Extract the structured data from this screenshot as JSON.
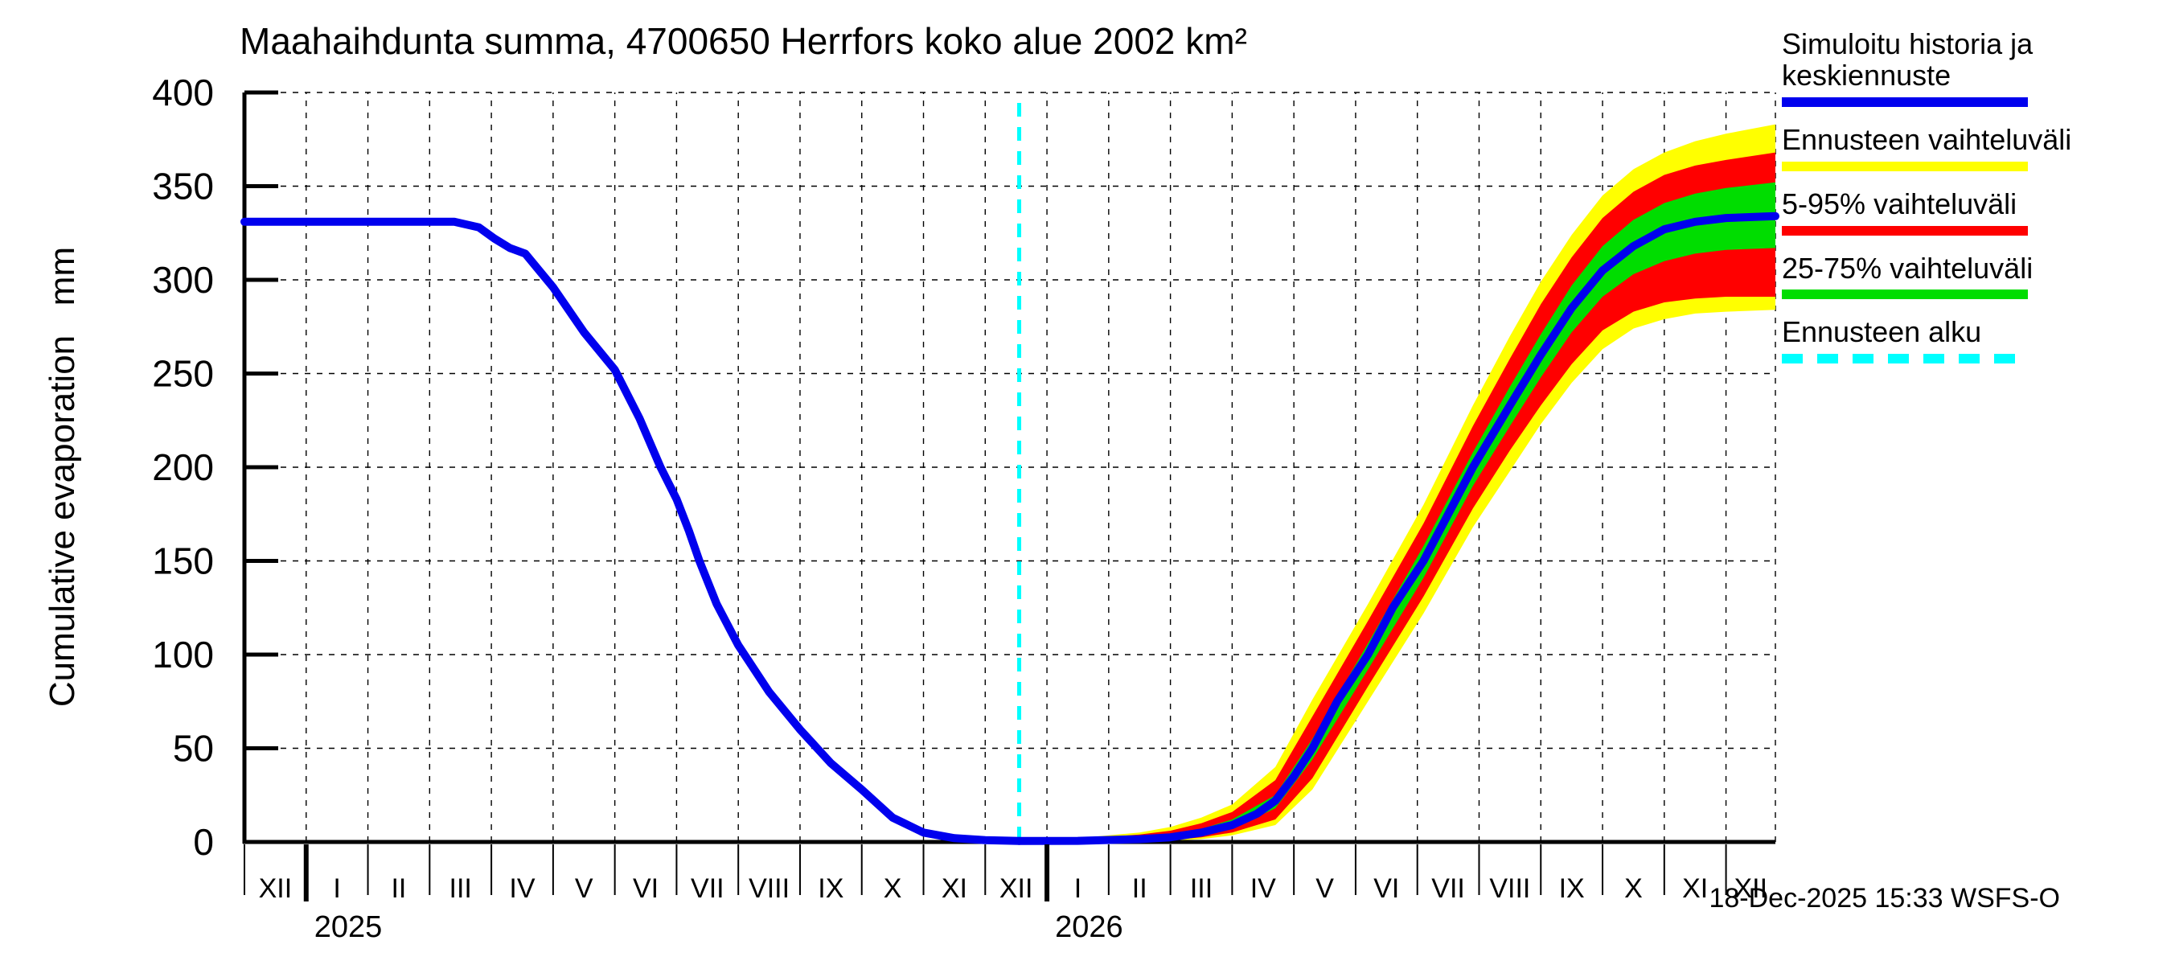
{
  "title": "Maahaihdunta summa, 4700650 Herrfors koko alue 2002 km²",
  "timestamp": "18-Dec-2025 15:33 WSFS-O",
  "legend": {
    "items": [
      {
        "label": "Simuloitu historia ja keskiennuste",
        "color": "#0000EE",
        "style": "solid"
      },
      {
        "label": "Ennusteen vaihteluväli",
        "color": "#FFFF00",
        "style": "solid"
      },
      {
        "label": "5-95% vaihteluväli",
        "color": "#FF0000",
        "style": "solid"
      },
      {
        "label": "25-75% vaihteluväli",
        "color": "#00DD00",
        "style": "solid"
      },
      {
        "label": "Ennusteen alku",
        "color": "#00FFFF",
        "style": "dashed"
      }
    ]
  },
  "chart_data": {
    "type": "line",
    "title": "Maahaihdunta summa, 4700650 Herrfors koko alue 2002 km²",
    "xlabel": "",
    "ylabel": "Cumulative evaporation   mm",
    "ylim": [
      0,
      400
    ],
    "y_step": 50,
    "grid": true,
    "legend_position": "top-right",
    "x_axis": {
      "unit": "months since 1 Dec 2024",
      "max_month": 24.8,
      "month_labels": [
        "XII",
        "I",
        "II",
        "III",
        "IV",
        "V",
        "VI",
        "VII",
        "VIII",
        "IX",
        "X",
        "XI",
        "XII",
        "I",
        "II",
        "III",
        "IV",
        "V",
        "VI",
        "VII",
        "VIII",
        "IX",
        "X",
        "XI",
        "XII"
      ],
      "year_labels": [
        {
          "label": "2025",
          "month_index": 1
        },
        {
          "label": "2026",
          "month_index": 13
        }
      ]
    },
    "forecast_start_month": 12.55,
    "forecast_start_color": "#00FFFF",
    "series": [
      {
        "name": "history_mean",
        "color": "#0000EE",
        "width": 10,
        "points": [
          [
            0,
            331
          ],
          [
            3.4,
            331
          ],
          [
            3.8,
            328
          ],
          [
            4.05,
            322
          ],
          [
            4.3,
            317
          ],
          [
            4.55,
            314
          ],
          [
            4.8,
            304
          ],
          [
            5,
            296
          ],
          [
            5.5,
            272
          ],
          [
            6,
            252
          ],
          [
            6.4,
            226
          ],
          [
            6.74,
            200
          ],
          [
            7,
            183
          ],
          [
            7.2,
            166
          ],
          [
            7.37,
            150
          ],
          [
            7.65,
            127
          ],
          [
            8,
            105
          ],
          [
            8.5,
            80
          ],
          [
            9,
            60
          ],
          [
            9.5,
            42
          ],
          [
            10,
            28
          ],
          [
            10.5,
            13
          ],
          [
            11,
            5
          ],
          [
            11.5,
            2
          ],
          [
            12,
            1
          ],
          [
            12.55,
            0.5
          ]
        ]
      },
      {
        "name": "forecast_mean",
        "color": "#0000EE",
        "width": 10,
        "points": [
          [
            12.55,
            0.5
          ],
          [
            13.5,
            0.6
          ],
          [
            14.5,
            1.5
          ],
          [
            15,
            2.5
          ],
          [
            15.5,
            5
          ],
          [
            16,
            9
          ],
          [
            16.4,
            15
          ],
          [
            16.7,
            22
          ],
          [
            17,
            35
          ],
          [
            17.3,
            50
          ],
          [
            17.7,
            75
          ],
          [
            18.2,
            100
          ],
          [
            18.6,
            125
          ],
          [
            19.1,
            150
          ],
          [
            19.5,
            175
          ],
          [
            19.9,
            200
          ],
          [
            20.5,
            233
          ],
          [
            21,
            260
          ],
          [
            21.5,
            285
          ],
          [
            22,
            305
          ],
          [
            22.5,
            318
          ],
          [
            23,
            327
          ],
          [
            23.5,
            331
          ],
          [
            24,
            333
          ],
          [
            24.8,
            334
          ]
        ]
      }
    ],
    "bands": [
      {
        "name": "minmax",
        "label": "Ennusteen vaihteluväli",
        "color": "#FFFF00",
        "upper": [
          [
            12.55,
            1
          ],
          [
            13.5,
            2
          ],
          [
            14.5,
            5
          ],
          [
            15,
            8
          ],
          [
            15.5,
            13
          ],
          [
            16,
            20
          ],
          [
            16.7,
            40
          ],
          [
            17.3,
            76
          ],
          [
            18.2,
            127
          ],
          [
            19.1,
            180
          ],
          [
            19.9,
            233
          ],
          [
            20.5,
            270
          ],
          [
            21,
            299
          ],
          [
            21.5,
            324
          ],
          [
            22,
            345
          ],
          [
            22.5,
            359
          ],
          [
            23,
            368
          ],
          [
            23.5,
            374
          ],
          [
            24,
            378
          ],
          [
            24.8,
            383
          ]
        ],
        "lower": [
          [
            12.55,
            0
          ],
          [
            14.5,
            0.2
          ],
          [
            15,
            0.6
          ],
          [
            15.5,
            1.5
          ],
          [
            16,
            3.5
          ],
          [
            16.7,
            9
          ],
          [
            17.3,
            28
          ],
          [
            18.2,
            75
          ],
          [
            19.1,
            122
          ],
          [
            19.9,
            168
          ],
          [
            20.5,
            198
          ],
          [
            21,
            223
          ],
          [
            21.5,
            245
          ],
          [
            22,
            263
          ],
          [
            22.5,
            274
          ],
          [
            23,
            279
          ],
          [
            23.5,
            282
          ],
          [
            24,
            283
          ],
          [
            24.8,
            284
          ]
        ]
      },
      {
        "name": "p5_95",
        "label": "5-95% vaihteluväli",
        "color": "#FF0000",
        "upper": [
          [
            12.55,
            0.8
          ],
          [
            13.5,
            1.5
          ],
          [
            14.5,
            4
          ],
          [
            15,
            6
          ],
          [
            15.5,
            10
          ],
          [
            16,
            16
          ],
          [
            16.7,
            33
          ],
          [
            17.3,
            67
          ],
          [
            18.2,
            118
          ],
          [
            19.1,
            170
          ],
          [
            19.9,
            222
          ],
          [
            20.5,
            258
          ],
          [
            21,
            287
          ],
          [
            21.5,
            312
          ],
          [
            22,
            333
          ],
          [
            22.5,
            347
          ],
          [
            23,
            356
          ],
          [
            23.5,
            361
          ],
          [
            24,
            364
          ],
          [
            24.8,
            368
          ]
        ],
        "lower": [
          [
            12.55,
            0.1
          ],
          [
            14.5,
            0.5
          ],
          [
            15,
            1
          ],
          [
            15.5,
            2.5
          ],
          [
            16,
            5
          ],
          [
            16.7,
            12
          ],
          [
            17.3,
            34
          ],
          [
            18.2,
            83
          ],
          [
            19.1,
            131
          ],
          [
            19.9,
            178
          ],
          [
            20.5,
            209
          ],
          [
            21,
            233
          ],
          [
            21.5,
            255
          ],
          [
            22,
            273
          ],
          [
            22.5,
            283
          ],
          [
            23,
            288
          ],
          [
            23.5,
            290
          ],
          [
            24,
            291
          ],
          [
            24.8,
            291
          ]
        ]
      },
      {
        "name": "p25_75",
        "label": "25-75% vaihteluväli",
        "color": "#00DD00",
        "upper": [
          [
            12.55,
            0.6
          ],
          [
            13.5,
            1
          ],
          [
            14.5,
            2.5
          ],
          [
            15,
            4
          ],
          [
            15.5,
            7
          ],
          [
            16,
            12
          ],
          [
            16.7,
            25
          ],
          [
            17.3,
            55
          ],
          [
            18.2,
            106
          ],
          [
            19.1,
            158
          ],
          [
            19.9,
            208
          ],
          [
            20.5,
            243
          ],
          [
            21,
            271
          ],
          [
            21.5,
            297
          ],
          [
            22,
            318
          ],
          [
            22.5,
            332
          ],
          [
            23,
            341
          ],
          [
            23.5,
            346
          ],
          [
            24,
            349
          ],
          [
            24.8,
            352
          ]
        ],
        "lower": [
          [
            12.55,
            0.3
          ],
          [
            14.5,
            1
          ],
          [
            15,
            1.8
          ],
          [
            15.5,
            3.5
          ],
          [
            16,
            7
          ],
          [
            16.7,
            18
          ],
          [
            17.3,
            44
          ],
          [
            18.2,
            92
          ],
          [
            19.1,
            141
          ],
          [
            19.9,
            190
          ],
          [
            20.5,
            222
          ],
          [
            21,
            248
          ],
          [
            21.5,
            272
          ],
          [
            22,
            291
          ],
          [
            22.5,
            303
          ],
          [
            23,
            310
          ],
          [
            23.5,
            314
          ],
          [
            24,
            316
          ],
          [
            24.8,
            317
          ]
        ]
      }
    ]
  }
}
